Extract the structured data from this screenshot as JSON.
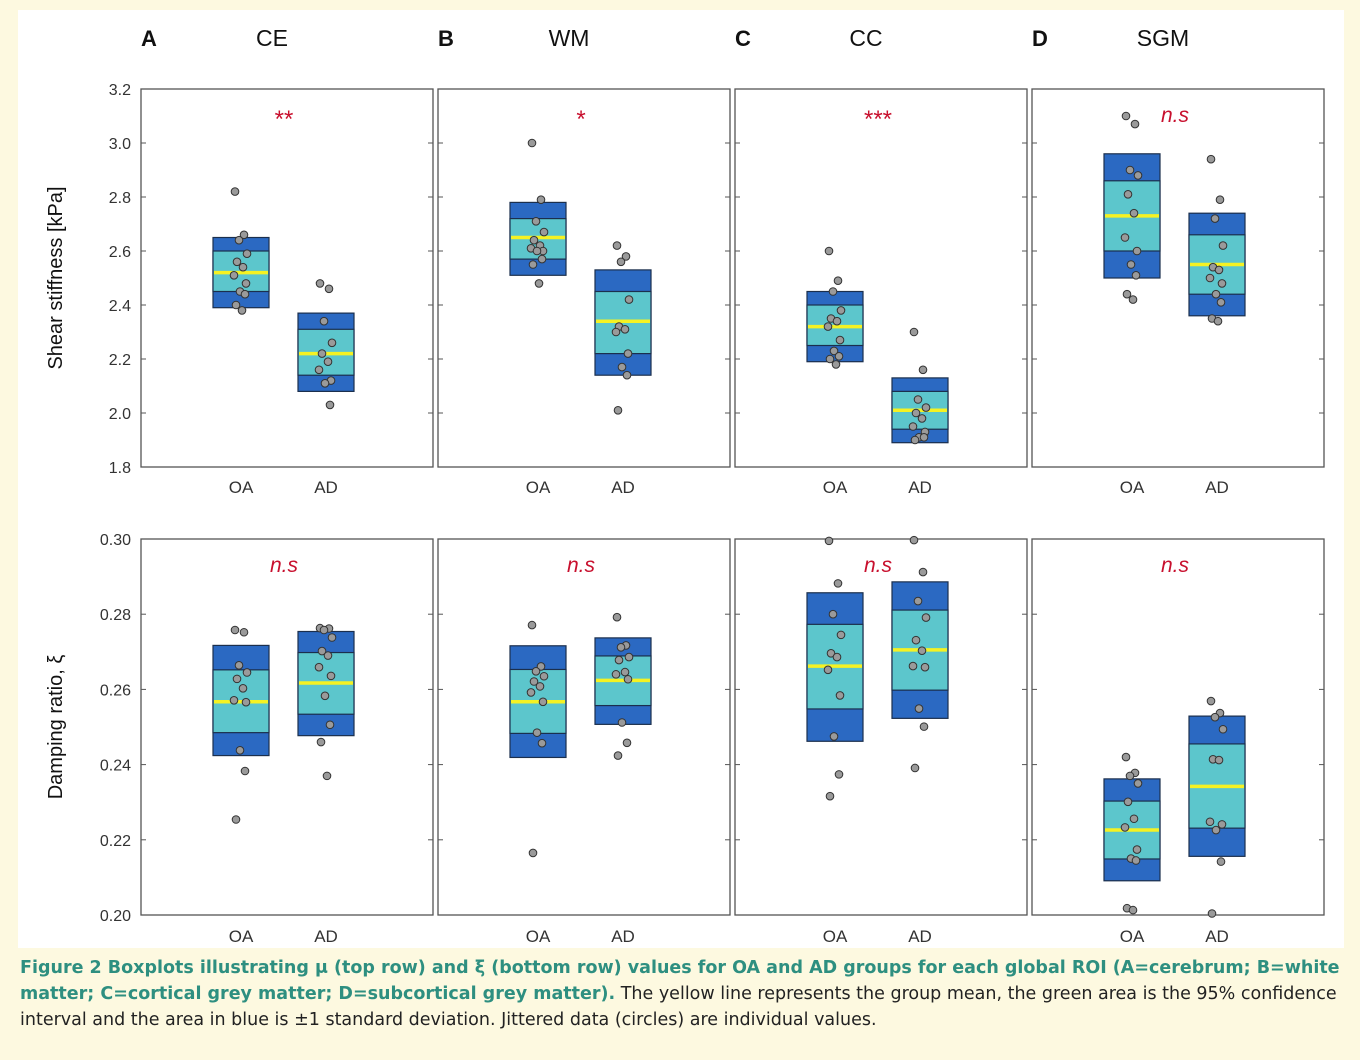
{
  "chart_data": {
    "type": "box",
    "groups": [
      "OA",
      "AD"
    ],
    "rows": [
      {
        "ylabel": "Shear stiffness [kPa]",
        "ylim": [
          1.8,
          3.2
        ],
        "yticks": [
          "3.2",
          "3.0",
          "2.8",
          "2.6",
          "2.4",
          "2.2",
          "2.0",
          "1.8"
        ],
        "panels": [
          {
            "letter": "A",
            "title": "CE",
            "significance": "**",
            "boxes": [
              {
                "group": "OA",
                "mean": 2.52,
                "ci": [
                  2.45,
                  2.6
                ],
                "sd": [
                  2.39,
                  2.65
                ],
                "points": [
                  2.82,
                  2.66,
                  2.64,
                  2.59,
                  2.56,
                  2.54,
                  2.51,
                  2.48,
                  2.45,
                  2.44,
                  2.4,
                  2.38
                ]
              },
              {
                "group": "AD",
                "mean": 2.22,
                "ci": [
                  2.14,
                  2.31
                ],
                "sd": [
                  2.08,
                  2.37
                ],
                "points": [
                  2.48,
                  2.46,
                  2.34,
                  2.26,
                  2.22,
                  2.19,
                  2.16,
                  2.12,
                  2.11,
                  2.03
                ]
              }
            ]
          },
          {
            "letter": "B",
            "title": "WM",
            "significance": "*",
            "boxes": [
              {
                "group": "OA",
                "mean": 2.65,
                "ci": [
                  2.57,
                  2.72
                ],
                "sd": [
                  2.51,
                  2.78
                ],
                "points": [
                  3.0,
                  2.79,
                  2.71,
                  2.67,
                  2.64,
                  2.62,
                  2.61,
                  2.6,
                  2.6,
                  2.57,
                  2.55,
                  2.48
                ]
              },
              {
                "group": "AD",
                "mean": 2.34,
                "ci": [
                  2.22,
                  2.45
                ],
                "sd": [
                  2.14,
                  2.53
                ],
                "points": [
                  2.62,
                  2.58,
                  2.56,
                  2.42,
                  2.32,
                  2.31,
                  2.3,
                  2.22,
                  2.17,
                  2.14,
                  2.01
                ]
              }
            ]
          },
          {
            "letter": "C",
            "title": "CC",
            "significance": "***",
            "boxes": [
              {
                "group": "OA",
                "mean": 2.32,
                "ci": [
                  2.25,
                  2.4
                ],
                "sd": [
                  2.19,
                  2.45
                ],
                "points": [
                  2.6,
                  2.49,
                  2.45,
                  2.38,
                  2.35,
                  2.34,
                  2.32,
                  2.27,
                  2.23,
                  2.21,
                  2.2,
                  2.18
                ]
              },
              {
                "group": "AD",
                "mean": 2.01,
                "ci": [
                  1.94,
                  2.08
                ],
                "sd": [
                  1.89,
                  2.13
                ],
                "points": [
                  2.3,
                  2.16,
                  2.05,
                  2.02,
                  2.0,
                  1.98,
                  1.95,
                  1.93,
                  1.91,
                  1.91,
                  1.9
                ]
              }
            ]
          },
          {
            "letter": "D",
            "title": "SGM",
            "significance": "n.s",
            "boxes": [
              {
                "group": "OA",
                "mean": 2.73,
                "ci": [
                  2.6,
                  2.86
                ],
                "sd": [
                  2.5,
                  2.96
                ],
                "points": [
                  3.1,
                  3.07,
                  2.9,
                  2.88,
                  2.81,
                  2.74,
                  2.65,
                  2.6,
                  2.55,
                  2.51,
                  2.44,
                  2.42
                ]
              },
              {
                "group": "AD",
                "mean": 2.55,
                "ci": [
                  2.44,
                  2.66
                ],
                "sd": [
                  2.36,
                  2.74
                ],
                "points": [
                  2.94,
                  2.79,
                  2.72,
                  2.62,
                  2.54,
                  2.53,
                  2.5,
                  2.48,
                  2.44,
                  2.41,
                  2.35,
                  2.34
                ]
              }
            ]
          }
        ]
      },
      {
        "ylabel": "Damping ratio, ξ",
        "ylim": [
          0.2,
          0.3
        ],
        "yticks": [
          "0.30",
          "0.28",
          "0.26",
          "0.24",
          "0.22",
          "0.20"
        ],
        "panels": [
          {
            "letter": "",
            "title": "",
            "significance": "n.s",
            "boxes": [
              {
                "group": "OA",
                "mean": 0.2567,
                "ci": [
                  0.2485,
                  0.2652
                ],
                "sd": [
                  0.2424,
                  0.2717
                ],
                "points": [
                  0.2758,
                  0.2752,
                  0.2664,
                  0.2645,
                  0.2628,
                  0.2603,
                  0.2571,
                  0.2566,
                  0.2438,
                  0.2383,
                  0.2254
                ]
              },
              {
                "group": "AD",
                "mean": 0.2617,
                "ci": [
                  0.2534,
                  0.2698
                ],
                "sd": [
                  0.2477,
                  0.2754
                ],
                "points": [
                  0.2763,
                  0.2762,
                  0.2758,
                  0.2738,
                  0.2702,
                  0.269,
                  0.2659,
                  0.2636,
                  0.2583,
                  0.2506,
                  0.246,
                  0.237
                ]
              }
            ]
          },
          {
            "letter": "",
            "title": "",
            "significance": "n.s",
            "boxes": [
              {
                "group": "OA",
                "mean": 0.2567,
                "ci": [
                  0.2483,
                  0.2653
                ],
                "sd": [
                  0.2419,
                  0.2716
                ],
                "points": [
                  0.2771,
                  0.2661,
                  0.2648,
                  0.2635,
                  0.2621,
                  0.2608,
                  0.2592,
                  0.2567,
                  0.2485,
                  0.2457,
                  0.2165
                ]
              },
              {
                "group": "AD",
                "mean": 0.2624,
                "ci": [
                  0.2557,
                  0.2689
                ],
                "sd": [
                  0.2507,
                  0.2737
                ],
                "points": [
                  0.2792,
                  0.2717,
                  0.2712,
                  0.2686,
                  0.2678,
                  0.2646,
                  0.264,
                  0.2627,
                  0.2512,
                  0.2458,
                  0.2424
                ]
              }
            ]
          },
          {
            "letter": "",
            "title": "",
            "significance": "n.s",
            "boxes": [
              {
                "group": "OA",
                "mean": 0.2662,
                "ci": [
                  0.2548,
                  0.2773
                ],
                "sd": [
                  0.2462,
                  0.2857
                ],
                "points": [
                  0.2995,
                  0.2882,
                  0.28,
                  0.2745,
                  0.2696,
                  0.2686,
                  0.2652,
                  0.2584,
                  0.2475,
                  0.2374,
                  0.2316
                ]
              },
              {
                "group": "AD",
                "mean": 0.2705,
                "ci": [
                  0.2598,
                  0.2811
                ],
                "sd": [
                  0.2523,
                  0.2886
                ],
                "points": [
                  0.2997,
                  0.2912,
                  0.2835,
                  0.2791,
                  0.2731,
                  0.2703,
                  0.2662,
                  0.2659,
                  0.2549,
                  0.2501,
                  0.2391
                ]
              }
            ]
          },
          {
            "letter": "",
            "title": "",
            "significance": "n.s",
            "boxes": [
              {
                "group": "OA",
                "mean": 0.2226,
                "ci": [
                  0.2149,
                  0.2303
                ],
                "sd": [
                  0.2091,
                  0.2362
                ],
                "points": [
                  0.242,
                  0.2378,
                  0.237,
                  0.235,
                  0.2301,
                  0.2256,
                  0.2233,
                  0.2174,
                  0.215,
                  0.2145,
                  0.2018,
                  0.2013
                ]
              },
              {
                "group": "AD",
                "mean": 0.2342,
                "ci": [
                  0.2231,
                  0.2455
                ],
                "sd": [
                  0.2156,
                  0.2529
                ],
                "points": [
                  0.2569,
                  0.2537,
                  0.2526,
                  0.2494,
                  0.2414,
                  0.2412,
                  0.2248,
                  0.2241,
                  0.2226,
                  0.2142,
                  0.2004
                ]
              }
            ]
          }
        ]
      }
    ],
    "colors": {
      "sd": "#2b69c2",
      "ci": "#5cc6cc",
      "mean": "#f5f223",
      "point": "#9a9a9a",
      "significance": "#c8102e"
    }
  },
  "caption": {
    "lead": "Figure 2 Boxplots illustrating μ (top row) and ξ (bottom row) values for OA and AD groups for each global ROI (A=cerebrum; B=white matter; C=cortical grey matter; D=subcortical grey matter).",
    "body": "The yellow line represents the group mean, the green area is the 95% confidence interval and the area in blue is ±1 standard deviation. Jittered data (circles) are individual values."
  }
}
